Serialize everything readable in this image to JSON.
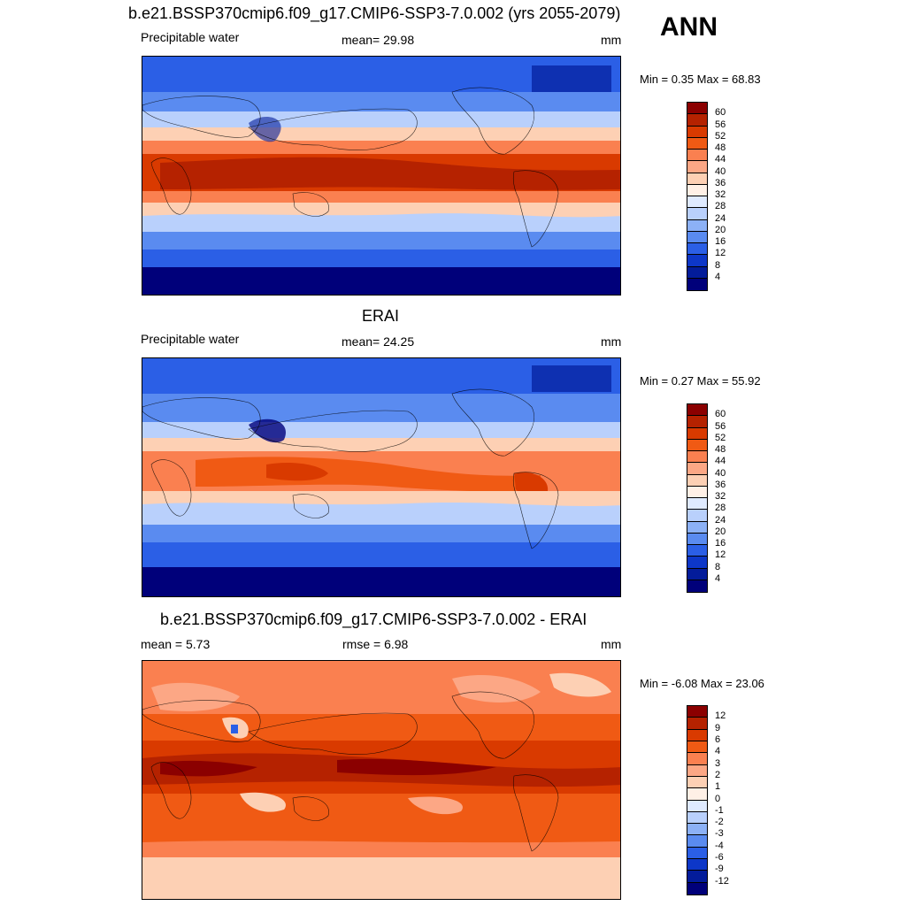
{
  "season": "ANN",
  "panels": [
    {
      "title": "b.e21.BSSP370cmip6.f09_g17.CMIP6-SSP3-7.0.002 (yrs 2055-2079)",
      "left_label": "Precipitable water",
      "center_label": "mean=  29.98",
      "units": "mm",
      "minmax": "Min =   0.35 Max =  68.83",
      "colorbar_levels": [
        "60",
        "56",
        "52",
        "48",
        "44",
        "40",
        "36",
        "32",
        "28",
        "24",
        "20",
        "16",
        "12",
        "8",
        "4"
      ],
      "colors": [
        "#8b0000",
        "#b52200",
        "#d93a00",
        "#f05a14",
        "#fa8050",
        "#fca785",
        "#fdd0b4",
        "#fff0e6",
        "#dfeaff",
        "#b9d0fc",
        "#8cb1f6",
        "#5a8bf0",
        "#2b5fe6",
        "#0d37c8",
        "#031c9a",
        "#00007a"
      ]
    },
    {
      "title": "ERAI",
      "left_label": "Precipitable water",
      "center_label": "mean=  24.25",
      "units": "mm",
      "minmax": "Min =   0.27 Max =  55.92",
      "colorbar_levels": [
        "60",
        "56",
        "52",
        "48",
        "44",
        "40",
        "36",
        "32",
        "28",
        "24",
        "20",
        "16",
        "12",
        "8",
        "4"
      ],
      "colors": [
        "#8b0000",
        "#b52200",
        "#d93a00",
        "#f05a14",
        "#fa8050",
        "#fca785",
        "#fdd0b4",
        "#fff0e6",
        "#dfeaff",
        "#b9d0fc",
        "#8cb1f6",
        "#5a8bf0",
        "#2b5fe6",
        "#0d37c8",
        "#031c9a",
        "#00007a"
      ]
    },
    {
      "title": "b.e21.BSSP370cmip6.f09_g17.CMIP6-SSP3-7.0.002 - ERAI",
      "left_label": "mean =   5.73",
      "center_label": "rmse =   6.98",
      "units": "mm",
      "minmax": "Min =  -6.08 Max =  23.06",
      "colorbar_levels": [
        "12",
        "9",
        "6",
        "4",
        "3",
        "2",
        "1",
        "0",
        "-1",
        "-2",
        "-3",
        "-4",
        "-6",
        "-9",
        "-12"
      ],
      "colors": [
        "#8b0000",
        "#b52200",
        "#d93a00",
        "#f05a14",
        "#fa8050",
        "#fca785",
        "#fdd0b4",
        "#fff0e6",
        "#dfeaff",
        "#b9d0fc",
        "#8cb1f6",
        "#5a8bf0",
        "#2b5fe6",
        "#0d37c8",
        "#031c9a",
        "#00007a"
      ]
    }
  ]
}
